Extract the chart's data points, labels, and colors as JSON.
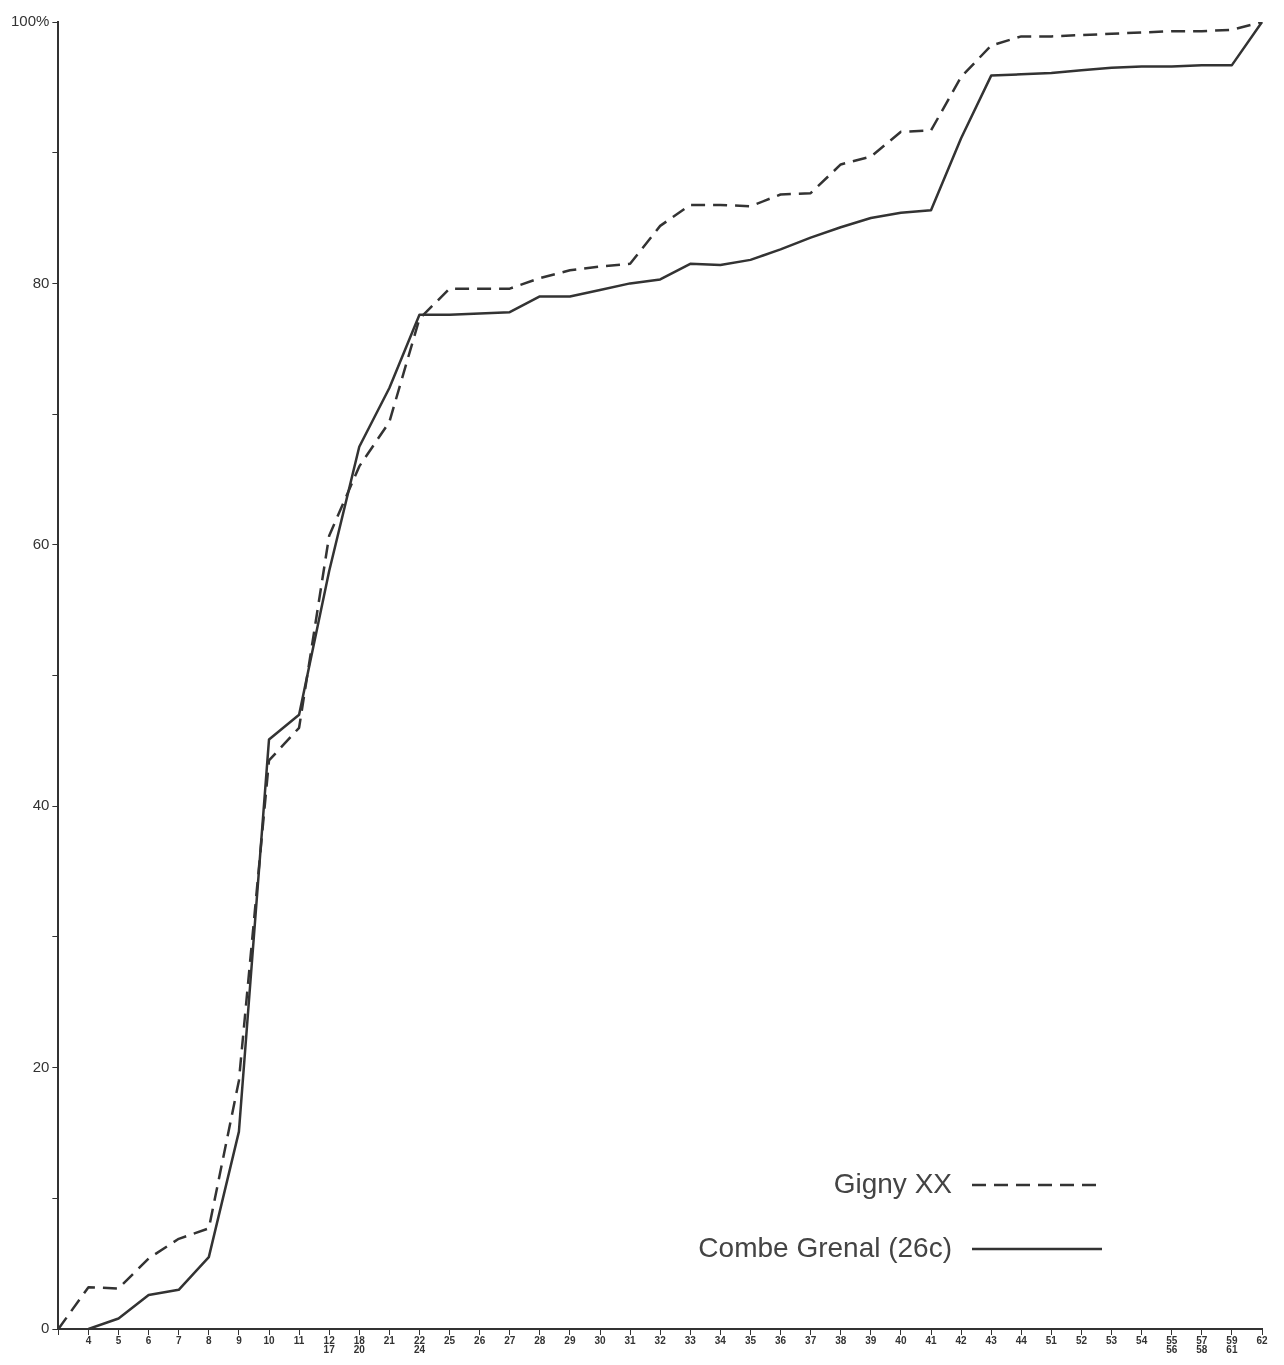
{
  "chart_data": {
    "type": "line",
    "categories": [
      null,
      "4",
      "5",
      "6",
      "7",
      "8",
      "9",
      "10",
      "11",
      "12\n17",
      "18\n20",
      "21",
      "22\n24",
      "25",
      "26",
      "27",
      "28",
      "29",
      "30",
      "31",
      "32",
      "33",
      "34",
      "35",
      "36",
      "37",
      "38",
      "39",
      "40",
      "41",
      "42",
      "43",
      "44",
      "51",
      "52",
      "53",
      "54",
      "55\n56",
      "57\n58",
      "59\n61",
      "62"
    ],
    "series": [
      {
        "name": "Gigny XX",
        "color": "#333333",
        "line_style": "dashed",
        "values": [
          0,
          3.2,
          3.1,
          5.4,
          6.9,
          7.7,
          19,
          43.5,
          46,
          60.7,
          66,
          69.4,
          77.3,
          79.6,
          79.6,
          79.6,
          80.4,
          81,
          81.3,
          81.5,
          84.4,
          86,
          86,
          85.9,
          86.8,
          86.9,
          89.1,
          89.7,
          91.6,
          91.7,
          95.8,
          98.2,
          98.9,
          98.9,
          99,
          99.1,
          99.2,
          99.3,
          99.3,
          99.4,
          100
        ]
      },
      {
        "name": "Combe Grenal (26c)",
        "color": "#333333",
        "line_style": "solid",
        "values": [
          null,
          0,
          0.8,
          2.6,
          3,
          5.5,
          15.1,
          45.1,
          47,
          58,
          67.5,
          72,
          77.6,
          77.6,
          77.7,
          77.8,
          79,
          79,
          79.5,
          80,
          80.3,
          81.5,
          81.4,
          81.8,
          82.6,
          83.5,
          84.3,
          85,
          85.4,
          85.6,
          91.1,
          95.9,
          96,
          96.1,
          96.3,
          96.5,
          96.6,
          96.6,
          96.7,
          96.7,
          100
        ]
      }
    ],
    "ylim": [
      0,
      100
    ],
    "yticks": [
      0,
      {
        "value": 10,
        "label": null
      },
      20,
      {
        "value": 30,
        "label": null
      },
      40,
      {
        "value": 50,
        "label": null
      },
      60,
      {
        "value": 70,
        "label": null
      },
      80,
      {
        "value": 90,
        "label": null
      },
      {
        "value": 100,
        "label": "100%"
      }
    ],
    "grid": false,
    "legend": "bottom right",
    "marker": "none"
  }
}
